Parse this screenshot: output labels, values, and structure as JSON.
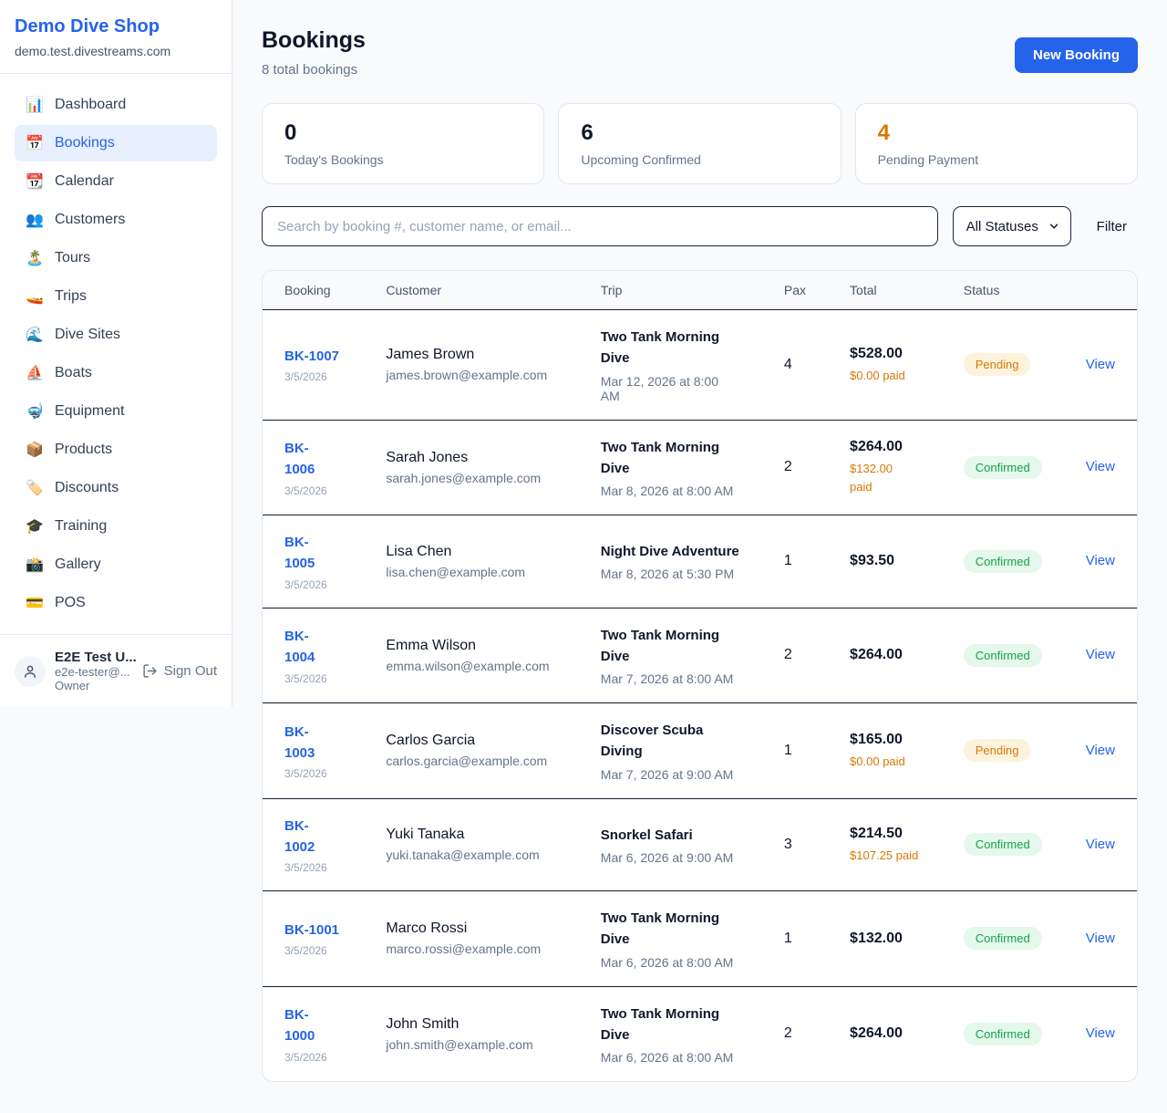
{
  "sidebar": {
    "brand": {
      "name": "Demo Dive Shop",
      "domain": "demo.test.divestreams.com"
    },
    "nav": [
      {
        "icon": "📊",
        "icon_name": "dashboard-chart-icon",
        "label": "Dashboard",
        "active": false
      },
      {
        "icon": "📅",
        "icon_name": "bookings-calendar-icon",
        "label": "Bookings",
        "active": true
      },
      {
        "icon": "📆",
        "icon_name": "calendar-icon",
        "label": "Calendar",
        "active": false
      },
      {
        "icon": "👥",
        "icon_name": "customers-people-icon",
        "label": "Customers",
        "active": false
      },
      {
        "icon": "🏝️",
        "icon_name": "tours-island-icon",
        "label": "Tours",
        "active": false
      },
      {
        "icon": "🚤",
        "icon_name": "trips-boat-icon",
        "label": "Trips",
        "active": false
      },
      {
        "icon": "🌊",
        "icon_name": "dive-sites-wave-icon",
        "label": "Dive Sites",
        "active": false
      },
      {
        "icon": "⛵",
        "icon_name": "boats-sailboat-icon",
        "label": "Boats",
        "active": false
      },
      {
        "icon": "🤿",
        "icon_name": "equipment-mask-icon",
        "label": "Equipment",
        "active": false
      },
      {
        "icon": "📦",
        "icon_name": "products-package-icon",
        "label": "Products",
        "active": false
      },
      {
        "icon": "🏷️",
        "icon_name": "discounts-tag-icon",
        "label": "Discounts",
        "active": false
      },
      {
        "icon": "🎓",
        "icon_name": "training-cap-icon",
        "label": "Training",
        "active": false
      },
      {
        "icon": "📸",
        "icon_name": "gallery-camera-icon",
        "label": "Gallery",
        "active": false
      },
      {
        "icon": "💳",
        "icon_name": "pos-card-icon",
        "label": "POS",
        "active": false
      }
    ],
    "user": {
      "name": "E2E Test U...",
      "email": "e2e-tester@...",
      "role": "Owner",
      "signout_label": "Sign Out"
    }
  },
  "header": {
    "title": "Bookings",
    "subtitle": "8 total bookings",
    "new_booking_label": "New Booking"
  },
  "stats": [
    {
      "value": "0",
      "label": "Today's Bookings",
      "color": "#0f172a"
    },
    {
      "value": "6",
      "label": "Upcoming Confirmed",
      "color": "#0f172a"
    },
    {
      "value": "4",
      "label": "Pending Payment",
      "color": "#d97706"
    }
  ],
  "filters": {
    "search_placeholder": "Search by booking #, customer name, or email...",
    "search_value": "",
    "status_selected": "All Statuses",
    "filter_label": "Filter"
  },
  "table": {
    "columns": [
      "Booking",
      "Customer",
      "Trip",
      "Pax",
      "Total",
      "Status",
      ""
    ],
    "view_label": "View",
    "rows": [
      {
        "id": "BK-1007",
        "date": "3/5/2026",
        "customer": "James Brown",
        "email": "james.brown@example.com",
        "trip": "Two Tank Morning Dive",
        "when": "Mar 12, 2026 at 8:00 AM",
        "pax": "4",
        "total": "$528.00",
        "paid": "$0.00 paid",
        "status": "Pending",
        "status_type": "pending"
      },
      {
        "id": "BK-\n1006",
        "date": "3/5/2026",
        "customer": "Sarah Jones",
        "email": "sarah.jones@example.com",
        "trip": "Two Tank Morning Dive",
        "when": "Mar 8, 2026 at 8:00 AM",
        "pax": "2",
        "total": "$264.00",
        "paid": "$132.00\npaid",
        "status": "Confirmed",
        "status_type": "confirmed"
      },
      {
        "id": "BK-\n1005",
        "date": "3/5/2026",
        "customer": "Lisa Chen",
        "email": "lisa.chen@example.com",
        "trip": "Night Dive Adventure",
        "when": "Mar 8, 2026 at 5:30 PM",
        "pax": "1",
        "total": "$93.50",
        "paid": null,
        "status": "Confirmed",
        "status_type": "confirmed"
      },
      {
        "id": "BK-\n1004",
        "date": "3/5/2026",
        "customer": "Emma Wilson",
        "email": "emma.wilson@example.com",
        "trip": "Two Tank Morning Dive",
        "when": "Mar 7, 2026 at 8:00 AM",
        "pax": "2",
        "total": "$264.00",
        "paid": null,
        "status": "Confirmed",
        "status_type": "confirmed"
      },
      {
        "id": "BK-\n1003",
        "date": "3/5/2026",
        "customer": "Carlos Garcia",
        "email": "carlos.garcia@example.com",
        "trip": "Discover Scuba Diving",
        "when": "Mar 7, 2026 at 9:00 AM",
        "pax": "1",
        "total": "$165.00",
        "paid": "$0.00 paid",
        "status": "Pending",
        "status_type": "pending"
      },
      {
        "id": "BK-\n1002",
        "date": "3/5/2026",
        "customer": "Yuki Tanaka",
        "email": "yuki.tanaka@example.com",
        "trip": "Snorkel Safari",
        "when": "Mar 6, 2026 at 9:00 AM",
        "pax": "3",
        "total": "$214.50",
        "paid": "$107.25 paid",
        "status": "Confirmed",
        "status_type": "confirmed"
      },
      {
        "id": "BK-1001",
        "date": "3/5/2026",
        "customer": "Marco Rossi",
        "email": "marco.rossi@example.com",
        "trip": "Two Tank Morning Dive",
        "when": "Mar 6, 2026 at 8:00 AM",
        "pax": "1",
        "total": "$132.00",
        "paid": null,
        "status": "Confirmed",
        "status_type": "confirmed"
      },
      {
        "id": "BK-\n1000",
        "date": "3/5/2026",
        "customer": "John Smith",
        "email": "john.smith@example.com",
        "trip": "Two Tank Morning Dive",
        "when": "Mar 6, 2026 at 8:00 AM",
        "pax": "2",
        "total": "$264.00",
        "paid": null,
        "status": "Confirmed",
        "status_type": "confirmed"
      }
    ]
  },
  "colors": {
    "accent": "#2563eb",
    "pending_text": "#d97706",
    "pending_bg": "#fdf3dc",
    "confirmed_text": "#16a34a",
    "confirmed_bg": "#e4f8ec",
    "page_bg": "#f8fafc",
    "border": "#e2e8f0"
  }
}
